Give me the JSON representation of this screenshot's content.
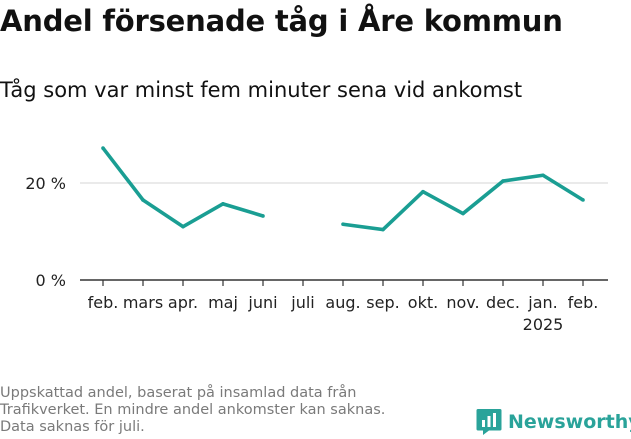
{
  "title": "Andel försenade tåg i Åre kommun",
  "subtitle": "Tåg som var minst fem minuter sena vid ankomst",
  "footnote": [
    "Uppskattad andel, baserat på insamlad data från",
    "Trafikverket. En mindre andel ankomster kan saknas.",
    "Data saknas för juli."
  ],
  "brand": {
    "name": "Newsworthy",
    "icon": "newsworthy-logo-icon",
    "color": "#2aa39a"
  },
  "chart_data": {
    "type": "line",
    "categories": [
      "feb.",
      "mars",
      "apr.",
      "maj",
      "juni",
      "juli",
      "aug.",
      "sep.",
      "okt.",
      "nov.",
      "dec.",
      "jan.",
      "feb."
    ],
    "category_sublabels": [
      "",
      "",
      "",
      "",
      "",
      "",
      "",
      "",
      "",
      "",
      "",
      "2025",
      ""
    ],
    "series": [
      {
        "values": [
          27.2,
          16.5,
          11.0,
          15.7,
          13.2,
          null,
          11.5,
          10.4,
          18.2,
          13.7,
          20.4,
          21.6,
          16.5
        ],
        "color": "#1a9e93"
      }
    ],
    "yticks": [
      0,
      20
    ],
    "ytick_labels": [
      "0 %",
      "20 %"
    ],
    "ylim": [
      0,
      30
    ],
    "grid": true
  }
}
